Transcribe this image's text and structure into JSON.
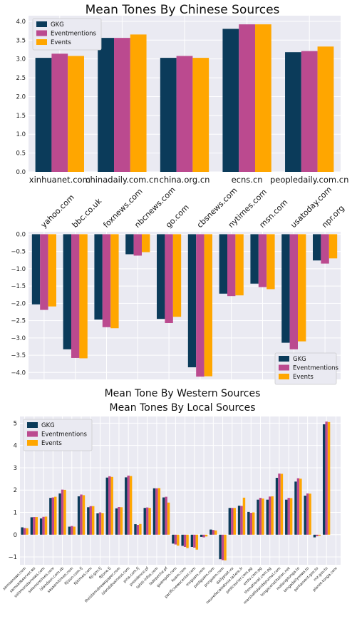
{
  "colors": {
    "gkg": "#0b3b5a",
    "eventmentions": "#bb4a8f",
    "events": "#ffa600",
    "plot_bg": "#eaeaf2",
    "grid": "#ffffff"
  },
  "legend_labels": [
    "GKG",
    "Eventmentions",
    "Events"
  ],
  "chart_data": [
    {
      "type": "bar",
      "title": "Mean Tones By Chinese Sources",
      "categories": [
        "xinhuanet.com",
        "chinadaily.com.cn",
        "china.org.cn",
        "ecns.cn",
        "peopledaily.com.cn"
      ],
      "series": [
        {
          "name": "GKG",
          "values": [
            3.03,
            3.56,
            3.03,
            3.8,
            3.18
          ]
        },
        {
          "name": "Eventmentions",
          "values": [
            3.14,
            3.56,
            3.08,
            3.92,
            3.21
          ]
        },
        {
          "name": "Events",
          "values": [
            3.08,
            3.65,
            3.03,
            3.92,
            3.33
          ]
        }
      ],
      "ylim": [
        0,
        4.15
      ],
      "yticks": [
        "0.0",
        "0.5",
        "1.0",
        "1.5",
        "2.0",
        "2.5",
        "3.0",
        "3.5",
        "4.0"
      ],
      "legend": "top-left",
      "grid": true
    },
    {
      "type": "bar",
      "title": "Mean Tone By Western Sources",
      "categories": [
        "yahoo.com",
        "bbc.co.uk",
        "foxnews.com",
        "nbcnews.com",
        "go.com",
        "cbsnews.com",
        "nytimes.com",
        "msn.com",
        "usatoday.com",
        "npr.org"
      ],
      "series": [
        {
          "name": "GKG",
          "values": [
            -2.03,
            -3.33,
            -2.47,
            -0.58,
            -2.45,
            -3.85,
            -1.72,
            -1.43,
            -3.14,
            -0.76
          ]
        },
        {
          "name": "Eventmentions",
          "values": [
            -2.19,
            -3.58,
            -2.69,
            -0.62,
            -2.57,
            -4.12,
            -1.79,
            -1.53,
            -3.33,
            -0.85
          ]
        },
        {
          "name": "Events",
          "values": [
            -2.09,
            -3.59,
            -2.72,
            -0.52,
            -2.39,
            -4.11,
            -1.77,
            -1.59,
            -3.1,
            -0.7
          ]
        }
      ],
      "ylim": [
        -4.2,
        0.07
      ],
      "yticks": [
        "0.0",
        "−0.5",
        "−1.0",
        "−1.5",
        "−2.0",
        "−2.5",
        "−3.0",
        "−3.5",
        "−4.0"
      ],
      "legend": "bottom-right",
      "grid": true
    },
    {
      "type": "bar",
      "title": "Mean Tones By Local Sources",
      "categories": [
        "samoanews.com",
        "samoaobserver.ws",
        "solomonstarnews.com",
        "solomontimes.com",
        "islandsun.com.sb",
        "sasaamitimes.com",
        "fijisun.com.fj",
        "fijitimes.com",
        "fiji.gov.fj",
        "fijione.fj",
        "theislanndnewspaper.com",
        "islandsbusiness.com",
        "pina.com.fj",
        "presidence.pf",
        "tahiti-infos.com",
        "ladepeche.pf",
        "guampdn.com",
        "kuam.com",
        "pacificnewscenter.com",
        "mvguam.com",
        "postguam.com",
        "pncguam.com",
        "dailypost.vu",
        "nouvellecaledonie.la1ere.fr",
        "postcourier.com.pg",
        "emtv.com.pg",
        "thenational.com.pg",
        "marshallislandsjournal.com",
        "tongaconstitution.net",
        "matangitonga.to",
        "tongadailynews.to",
        "parliament.gov.to",
        "rnz.gov.to",
        "planet-tonga.com"
      ],
      "series": [
        {
          "name": "GKG",
          "values": [
            0.33,
            0.78,
            0.73,
            1.65,
            1.85,
            0.36,
            1.72,
            1.23,
            0.96,
            2.56,
            1.18,
            2.57,
            0.47,
            1.2,
            2.08,
            1.67,
            -0.4,
            -0.5,
            -0.55,
            -0.1,
            0.23,
            -1.1,
            1.2,
            1.3,
            1.02,
            1.57,
            1.57,
            2.55,
            1.57,
            2.38,
            1.75,
            -0.12,
            4.95,
            0.0
          ]
        },
        {
          "name": "Eventmentions",
          "values": [
            0.3,
            0.79,
            0.8,
            1.67,
            2.02,
            0.39,
            1.8,
            1.28,
            1.0,
            2.62,
            1.24,
            2.65,
            0.44,
            1.22,
            2.08,
            1.7,
            -0.44,
            -0.55,
            -0.58,
            -0.12,
            0.21,
            -1.14,
            1.2,
            1.29,
            0.98,
            1.65,
            1.71,
            2.74,
            1.65,
            2.53,
            1.85,
            -0.07,
            5.07,
            0.0
          ]
        },
        {
          "name": "Events",
          "values": [
            0.29,
            0.79,
            0.81,
            1.7,
            2.01,
            0.36,
            1.77,
            1.28,
            0.97,
            2.59,
            1.23,
            2.63,
            0.48,
            1.2,
            2.09,
            1.44,
            -0.49,
            -0.6,
            -0.67,
            -0.08,
            0.19,
            -1.15,
            1.2,
            1.66,
            1.0,
            1.62,
            1.72,
            2.73,
            1.64,
            2.51,
            1.84,
            -0.05,
            5.05,
            0.0
          ]
        }
      ],
      "ylim": [
        -1.35,
        5.3
      ],
      "yticks": [
        "−1",
        "0",
        "1",
        "2",
        "3",
        "4",
        "5"
      ],
      "legend": "top-left",
      "grid": true
    }
  ]
}
